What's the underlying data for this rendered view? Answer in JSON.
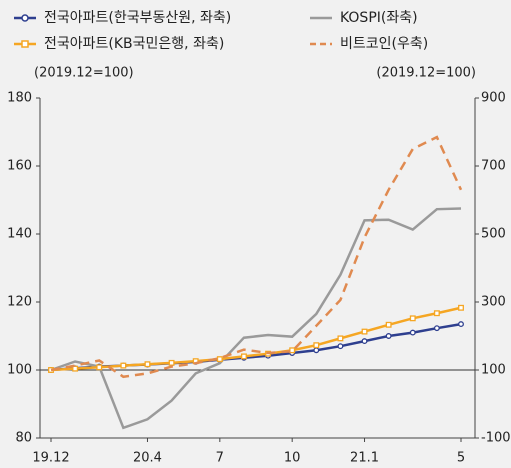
{
  "chart_data": {
    "type": "line",
    "y_label": "(2019.12=100)",
    "y2_label": "(2019.12=100)",
    "categories": [
      "19.12",
      null,
      null,
      null,
      "20.4",
      null,
      null,
      "7",
      null,
      null,
      "10",
      null,
      null,
      "21.1",
      null,
      null,
      null,
      "5"
    ],
    "ylim": [
      80,
      180
    ],
    "yticks": [
      80,
      100,
      120,
      140,
      160,
      180
    ],
    "y2lim": [
      -100,
      900
    ],
    "y2ticks": [
      -100,
      100,
      300,
      500,
      700,
      900
    ],
    "series": [
      {
        "name": "전국아파트(한국부동산원, 좌축)",
        "color": "#2e3f8f",
        "marker": "circle",
        "values": [
          100,
          100.5,
          101,
          101.3,
          101.6,
          102,
          102.4,
          103,
          103.6,
          104.2,
          105,
          105.8,
          107,
          108.5,
          110,
          111,
          112.3,
          113.5
        ]
      },
      {
        "name": "KOSPI(좌축)",
        "color": "#9a9a9a",
        "values": [
          100,
          102.5,
          101,
          83,
          85.5,
          91,
          99,
          102,
          109.5,
          110.3,
          109.8,
          116.5,
          128,
          144,
          144.2,
          141.3,
          147.3,
          147.5
        ]
      },
      {
        "name": "전국아파트(KB국민은행, 좌축)",
        "color": "#f5a623",
        "marker": "square",
        "values": [
          100,
          100.4,
          100.8,
          101.3,
          101.7,
          102.1,
          102.6,
          103.2,
          104,
          104.8,
          105.8,
          107.3,
          109.3,
          111.3,
          113.3,
          115.2,
          116.7,
          118.3
        ]
      },
      {
        "name": "비트코인(우축)",
        "color": "#e08a50",
        "axis": "y2",
        "dashed": true,
        "values": [
          100,
          113,
          128,
          80,
          90,
          110,
          120,
          135,
          160,
          150,
          155,
          230,
          306,
          490,
          630,
          750,
          785,
          630
        ]
      }
    ]
  }
}
